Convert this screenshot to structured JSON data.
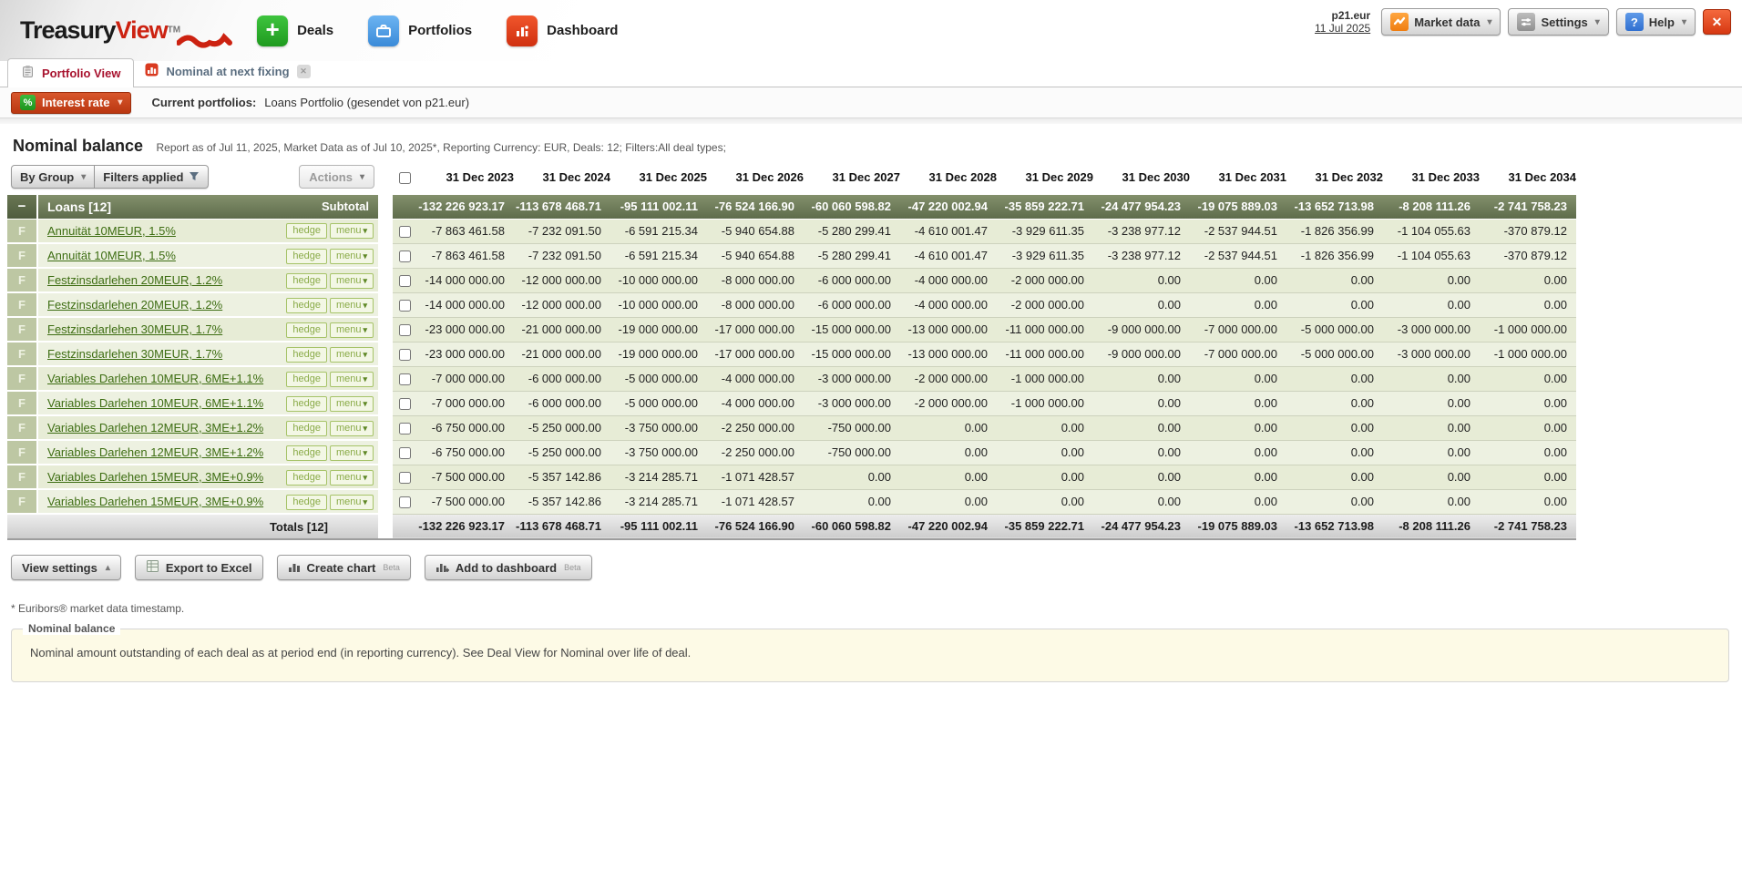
{
  "header": {
    "logo": {
      "part1": "Treasury",
      "part2": "View",
      "tm": "TM"
    },
    "nav": [
      {
        "label": "Deals"
      },
      {
        "label": "Portfolios"
      },
      {
        "label": "Dashboard"
      }
    ],
    "user": {
      "name": "p21.eur",
      "date": "11 Jul 2025"
    },
    "market_data_label": "Market data",
    "settings_label": "Settings",
    "help_label": "Help",
    "help_glyph": "?"
  },
  "tabs": {
    "active": "Portfolio View",
    "inactive": "Nominal at next fixing"
  },
  "subheader": {
    "rate_button": "Interest rate",
    "percent_glyph": "%",
    "portfolio_label": "Current portfolios:",
    "portfolio_value": "Loans Portfolio (gesendet von p21.eur)"
  },
  "report": {
    "title": "Nominal balance",
    "meta": "Report as of Jul 11, 2025, Market Data as of Jul 10, 2025*, Reporting Currency: EUR, Deals: 12; Filters:All deal types;",
    "by_group_label": "By Group",
    "filters_label": "Filters applied",
    "actions_label": "Actions"
  },
  "table": {
    "columns": [
      "31 Dec 2023",
      "31 Dec 2024",
      "31 Dec 2025",
      "31 Dec 2026",
      "31 Dec 2027",
      "31 Dec 2028",
      "31 Dec 2029",
      "31 Dec 2030",
      "31 Dec 2031",
      "31 Dec 2032",
      "31 Dec 2033",
      "31 Dec 2034"
    ],
    "hedge_label": "hedge",
    "menu_label": "menu",
    "group": {
      "collapse_glyph": "−",
      "name": "Loans [12]",
      "subtotal_label": "Subtotal",
      "values": [
        "-132 226 923.17",
        "-113 678 468.71",
        "-95 111 002.11",
        "-76 524 166.90",
        "-60 060 598.82",
        "-47 220 002.94",
        "-35 859 222.71",
        "-24 477 954.23",
        "-19 075 889.03",
        "-13 652 713.98",
        "-8 208 111.26",
        "-2 741 758.23"
      ]
    },
    "rows": [
      {
        "type": "F",
        "name": "Annuität 10MEUR, 1.5%",
        "values": [
          "-7 863 461.58",
          "-7 232 091.50",
          "-6 591 215.34",
          "-5 940 654.88",
          "-5 280 299.41",
          "-4 610 001.47",
          "-3 929 611.35",
          "-3 238 977.12",
          "-2 537 944.51",
          "-1 826 356.99",
          "-1 104 055.63",
          "-370 879.12"
        ]
      },
      {
        "type": "F",
        "name": "Annuität 10MEUR, 1.5%",
        "values": [
          "-7 863 461.58",
          "-7 232 091.50",
          "-6 591 215.34",
          "-5 940 654.88",
          "-5 280 299.41",
          "-4 610 001.47",
          "-3 929 611.35",
          "-3 238 977.12",
          "-2 537 944.51",
          "-1 826 356.99",
          "-1 104 055.63",
          "-370 879.12"
        ]
      },
      {
        "type": "F",
        "name": "Festzinsdarlehen 20MEUR, 1.2%",
        "values": [
          "-14 000 000.00",
          "-12 000 000.00",
          "-10 000 000.00",
          "-8 000 000.00",
          "-6 000 000.00",
          "-4 000 000.00",
          "-2 000 000.00",
          "0.00",
          "0.00",
          "0.00",
          "0.00",
          "0.00"
        ]
      },
      {
        "type": "F",
        "name": "Festzinsdarlehen 20MEUR, 1.2%",
        "values": [
          "-14 000 000.00",
          "-12 000 000.00",
          "-10 000 000.00",
          "-8 000 000.00",
          "-6 000 000.00",
          "-4 000 000.00",
          "-2 000 000.00",
          "0.00",
          "0.00",
          "0.00",
          "0.00",
          "0.00"
        ]
      },
      {
        "type": "F",
        "name": "Festzinsdarlehen 30MEUR, 1.7%",
        "values": [
          "-23 000 000.00",
          "-21 000 000.00",
          "-19 000 000.00",
          "-17 000 000.00",
          "-15 000 000.00",
          "-13 000 000.00",
          "-11 000 000.00",
          "-9 000 000.00",
          "-7 000 000.00",
          "-5 000 000.00",
          "-3 000 000.00",
          "-1 000 000.00"
        ]
      },
      {
        "type": "F",
        "name": "Festzinsdarlehen 30MEUR, 1.7%",
        "values": [
          "-23 000 000.00",
          "-21 000 000.00",
          "-19 000 000.00",
          "-17 000 000.00",
          "-15 000 000.00",
          "-13 000 000.00",
          "-11 000 000.00",
          "-9 000 000.00",
          "-7 000 000.00",
          "-5 000 000.00",
          "-3 000 000.00",
          "-1 000 000.00"
        ]
      },
      {
        "type": "F",
        "name": "Variables Darlehen 10MEUR, 6ME+1.1%",
        "values": [
          "-7 000 000.00",
          "-6 000 000.00",
          "-5 000 000.00",
          "-4 000 000.00",
          "-3 000 000.00",
          "-2 000 000.00",
          "-1 000 000.00",
          "0.00",
          "0.00",
          "0.00",
          "0.00",
          "0.00"
        ]
      },
      {
        "type": "F",
        "name": "Variables Darlehen 10MEUR, 6ME+1.1%",
        "values": [
          "-7 000 000.00",
          "-6 000 000.00",
          "-5 000 000.00",
          "-4 000 000.00",
          "-3 000 000.00",
          "-2 000 000.00",
          "-1 000 000.00",
          "0.00",
          "0.00",
          "0.00",
          "0.00",
          "0.00"
        ]
      },
      {
        "type": "F",
        "name": "Variables Darlehen 12MEUR, 3ME+1.2%",
        "values": [
          "-6 750 000.00",
          "-5 250 000.00",
          "-3 750 000.00",
          "-2 250 000.00",
          "-750 000.00",
          "0.00",
          "0.00",
          "0.00",
          "0.00",
          "0.00",
          "0.00",
          "0.00"
        ]
      },
      {
        "type": "F",
        "name": "Variables Darlehen 12MEUR, 3ME+1.2%",
        "values": [
          "-6 750 000.00",
          "-5 250 000.00",
          "-3 750 000.00",
          "-2 250 000.00",
          "-750 000.00",
          "0.00",
          "0.00",
          "0.00",
          "0.00",
          "0.00",
          "0.00",
          "0.00"
        ]
      },
      {
        "type": "F",
        "name": "Variables Darlehen 15MEUR, 3ME+0.9%",
        "values": [
          "-7 500 000.00",
          "-5 357 142.86",
          "-3 214 285.71",
          "-1 071 428.57",
          "0.00",
          "0.00",
          "0.00",
          "0.00",
          "0.00",
          "0.00",
          "0.00",
          "0.00"
        ]
      },
      {
        "type": "F",
        "name": "Variables Darlehen 15MEUR, 3ME+0.9%",
        "values": [
          "-7 500 000.00",
          "-5 357 142.86",
          "-3 214 285.71",
          "-1 071 428.57",
          "0.00",
          "0.00",
          "0.00",
          "0.00",
          "0.00",
          "0.00",
          "0.00",
          "0.00"
        ]
      }
    ],
    "totals": {
      "label": "Totals [12]",
      "values": [
        "-132 226 923.17",
        "-113 678 468.71",
        "-95 111 002.11",
        "-76 524 166.90",
        "-60 060 598.82",
        "-47 220 002.94",
        "-35 859 222.71",
        "-24 477 954.23",
        "-19 075 889.03",
        "-13 652 713.98",
        "-8 208 111.26",
        "-2 741 758.23"
      ]
    }
  },
  "footer": {
    "view_settings_label": "View settings",
    "export_label": "Export to Excel",
    "create_chart_label": "Create chart",
    "add_dashboard_label": "Add to dashboard",
    "beta": "Beta",
    "footnote": "* Euribors® market data timestamp.",
    "info_legend": "Nominal balance",
    "info_text": "Nominal amount outstanding of each deal as at period end (in reporting currency). See Deal View for Nominal over life of deal."
  },
  "colors": {
    "accent_red": "#cc2211",
    "group_row_green": "#5e6c4b",
    "row_light_green": "#edf1e1",
    "link_green": "#3d6d12",
    "button_red": "#ba3711"
  }
}
